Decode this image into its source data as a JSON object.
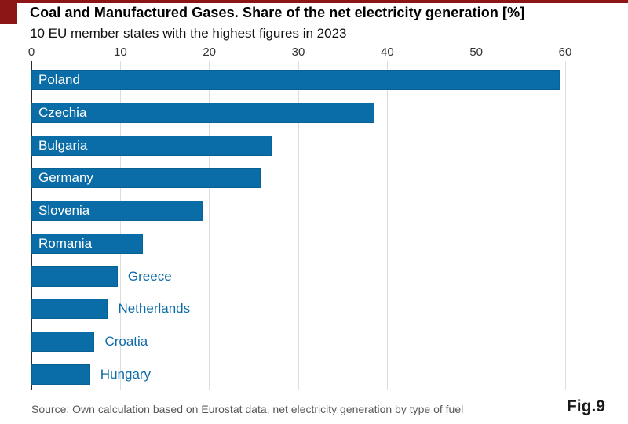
{
  "header": {
    "title": "Coal and Manufactured Gases. Share of the net electricity generation [%]",
    "subtitle": "10 EU member states with the highest figures in 2023"
  },
  "footer": {
    "source": "Source: Own calculation based on Eurostat data, net electricity generation by type of fuel",
    "figure_label": "Fig.9"
  },
  "colors": {
    "accent_red": "#8c1515",
    "bar_blue": "#0b6da7",
    "outside_label_blue": "#0d6ca8",
    "grid": "#d8dee2",
    "axis": "#2a2a2a",
    "source_gray": "#595959"
  },
  "chart_data": {
    "type": "bar",
    "orientation": "horizontal",
    "title": "Coal and Manufactured Gases. Share of the net electricity generation [%]",
    "subtitle": "10 EU member states with the highest figures in 2023",
    "categories": [
      "Poland",
      "Czechia",
      "Bulgaria",
      "Germany",
      "Slovenia",
      "Romania",
      "Greece",
      "Netherlands",
      "Croatia",
      "Hungary"
    ],
    "values": [
      59.4,
      38.6,
      27.0,
      25.8,
      19.2,
      12.5,
      9.7,
      8.6,
      7.1,
      6.6
    ],
    "unit": "%",
    "xlabel": "",
    "ylabel": "",
    "xlim": [
      0,
      60
    ],
    "x_ticks": [
      0,
      10,
      20,
      30,
      40,
      50,
      60
    ],
    "grid": "vertical-only",
    "legend": "none",
    "label_positions": [
      "inside",
      "inside",
      "inside",
      "inside",
      "inside",
      "inside",
      "outside",
      "outside",
      "outside",
      "outside"
    ]
  }
}
